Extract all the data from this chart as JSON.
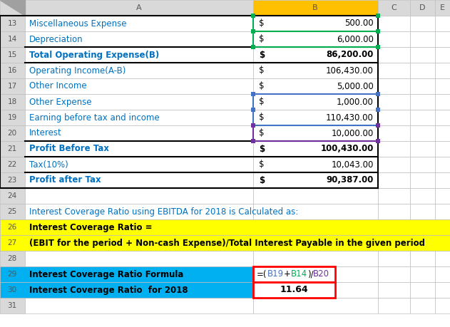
{
  "rows": [
    {
      "row": 13,
      "col_a": "Miscellaneous Expense",
      "dollar": "$",
      "value": "500.00",
      "bold": false,
      "thick_bottom": false
    },
    {
      "row": 14,
      "col_a": "Depreciation",
      "dollar": "$",
      "value": "6,000.00",
      "bold": false,
      "thick_bottom": false
    },
    {
      "row": 15,
      "col_a": "Total Operating Expense(B)",
      "dollar": "$",
      "value": "86,200.00",
      "bold": true,
      "thick_bottom": true
    },
    {
      "row": 16,
      "col_a": "Operating Income(A-B)",
      "dollar": "$",
      "value": "106,430.00",
      "bold": false,
      "thick_bottom": false
    },
    {
      "row": 17,
      "col_a": "Other Income",
      "dollar": "$",
      "value": "5,000.00",
      "bold": false,
      "thick_bottom": false
    },
    {
      "row": 18,
      "col_a": "Other Expense",
      "dollar": "$",
      "value": "1,000.00",
      "bold": false,
      "thick_bottom": false
    },
    {
      "row": 19,
      "col_a": "Earning before tax and income",
      "dollar": "$",
      "value": "110,430.00",
      "bold": false,
      "thick_bottom": false
    },
    {
      "row": 20,
      "col_a": "Interest",
      "dollar": "$",
      "value": "10,000.00",
      "bold": false,
      "thick_bottom": false
    },
    {
      "row": 21,
      "col_a": "Profit Before Tax",
      "dollar": "$",
      "value": "100,430.00",
      "bold": true,
      "thick_bottom": true
    },
    {
      "row": 22,
      "col_a": "Tax(10%)",
      "dollar": "$",
      "value": "10,043.00",
      "bold": false,
      "thick_bottom": false
    },
    {
      "row": 23,
      "col_a": "Profit after Tax",
      "dollar": "$",
      "value": "90,387.00",
      "bold": true,
      "thick_bottom": true
    }
  ],
  "col_a_text_color": "#0070c0",
  "cyan_bg": "#00b0f0",
  "yellow_bg": "#ffff00",
  "white_bg": "#ffffff",
  "header_bg": "#d9d9d9",
  "col_b_header_bg": "#ffc000",
  "grid_color": "#bfbfbf",
  "thick_border_color": "#000000",
  "text_color_black": "#000000",
  "text_color_blue": "#0070c0",
  "text_color_blue2": "#4472c4",
  "text_color_green": "#00b050",
  "text_color_purple": "#7030a0",
  "border_green": "#00b050",
  "border_blue": "#4472c4",
  "border_purple": "#7030a0",
  "border_red": "#ff0000",
  "row25_text": "Interest Coverage Ratio using EBITDA for 2018 is Calculated as:",
  "row26_text": "Interest Coverage Ratio =",
  "row27_text": "(EBIT for the period + Non-cash Expense)/Total Interest Payable in the given period",
  "row29_label": "Interest Coverage Ratio Formula",
  "row30_label": "Interest Coverage Ratio  for 2018",
  "result_text": "11.64",
  "fig_w": 6.31,
  "fig_h": 4.59,
  "dpi": 100
}
